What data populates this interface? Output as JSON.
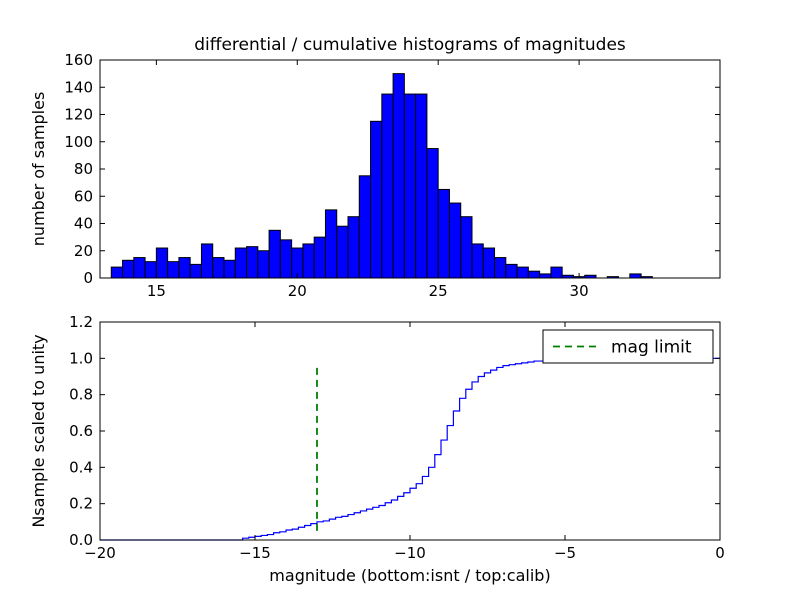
{
  "figure": {
    "title": "differential / cumulative histograms of magnitudes",
    "xlabel": "magnitude (bottom:isnt / top:calib)",
    "background": "#ffffff"
  },
  "chart_data": [
    {
      "type": "bar",
      "name": "differential-histogram",
      "ylabel": "number of samples",
      "bar_color": "#0000ff",
      "bar_edge_color": "#000000",
      "bin_start": 13.4,
      "bin_width": 0.4,
      "values": [
        8,
        13,
        15,
        12,
        22,
        12,
        15,
        10,
        25,
        15,
        13,
        22,
        23,
        20,
        35,
        28,
        22,
        25,
        30,
        50,
        38,
        45,
        75,
        115,
        135,
        150,
        135,
        135,
        95,
        65,
        55,
        45,
        25,
        22,
        15,
        10,
        8,
        5,
        3,
        8,
        2,
        1,
        2,
        0,
        1,
        0,
        3,
        1
      ],
      "xlim": [
        13,
        35
      ],
      "ylim": [
        0,
        160
      ],
      "xticks": [
        15,
        20,
        25,
        30
      ],
      "xtick_labels": [
        "15",
        "20",
        "25",
        "30"
      ],
      "yticks": [
        0,
        20,
        40,
        60,
        80,
        100,
        120,
        140,
        160
      ],
      "ytick_labels": [
        "0",
        "20",
        "40",
        "60",
        "80",
        "100",
        "120",
        "140",
        "160"
      ],
      "grid": false
    },
    {
      "type": "line",
      "name": "cumulative-histogram",
      "ylabel": "Nsample scaled to unity",
      "line_color": "#0000ff",
      "step": true,
      "points": [
        [
          -20,
          0
        ],
        [
          -15.6,
          0
        ],
        [
          -15.4,
          0.01
        ],
        [
          -15.2,
          0.015
        ],
        [
          -15.0,
          0.02
        ],
        [
          -14.8,
          0.025
        ],
        [
          -14.6,
          0.03
        ],
        [
          -14.4,
          0.04
        ],
        [
          -14.2,
          0.045
        ],
        [
          -14.0,
          0.055
        ],
        [
          -13.8,
          0.06
        ],
        [
          -13.6,
          0.07
        ],
        [
          -13.4,
          0.08
        ],
        [
          -13.2,
          0.09
        ],
        [
          -13.0,
          0.1
        ],
        [
          -12.8,
          0.105
        ],
        [
          -12.6,
          0.115
        ],
        [
          -12.4,
          0.125
        ],
        [
          -12.2,
          0.13
        ],
        [
          -12.0,
          0.14
        ],
        [
          -11.8,
          0.15
        ],
        [
          -11.6,
          0.16
        ],
        [
          -11.4,
          0.17
        ],
        [
          -11.2,
          0.18
        ],
        [
          -11.0,
          0.19
        ],
        [
          -10.8,
          0.205
        ],
        [
          -10.6,
          0.22
        ],
        [
          -10.4,
          0.24
        ],
        [
          -10.2,
          0.26
        ],
        [
          -10.0,
          0.285
        ],
        [
          -9.8,
          0.31
        ],
        [
          -9.6,
          0.35
        ],
        [
          -9.4,
          0.4
        ],
        [
          -9.2,
          0.47
        ],
        [
          -9.0,
          0.55
        ],
        [
          -8.8,
          0.63
        ],
        [
          -8.6,
          0.71
        ],
        [
          -8.4,
          0.78
        ],
        [
          -8.2,
          0.83
        ],
        [
          -8.0,
          0.87
        ],
        [
          -7.8,
          0.9
        ],
        [
          -7.6,
          0.92
        ],
        [
          -7.4,
          0.935
        ],
        [
          -7.2,
          0.95
        ],
        [
          -7.0,
          0.96
        ],
        [
          -6.8,
          0.965
        ],
        [
          -6.6,
          0.97
        ],
        [
          -6.4,
          0.975
        ],
        [
          -6.2,
          0.98
        ],
        [
          -6.0,
          0.985
        ],
        [
          -5.6,
          0.99
        ],
        [
          -5.2,
          0.993
        ],
        [
          -4.8,
          0.996
        ],
        [
          -4.4,
          0.997
        ],
        [
          -4.0,
          0.998
        ],
        [
          -3.4,
          0.999
        ],
        [
          -2.8,
          1.0
        ],
        [
          0,
          1.0
        ]
      ],
      "xlim": [
        -20,
        0
      ],
      "ylim": [
        0,
        1.2
      ],
      "xticks": [
        -20,
        -15,
        -10,
        -5,
        0
      ],
      "xtick_labels": [
        "−20",
        "−15",
        "−10",
        "−5",
        "0"
      ],
      "yticks": [
        0,
        0.2,
        0.4,
        0.6,
        0.8,
        1.0,
        1.2
      ],
      "ytick_labels": [
        "0.0",
        "0.2",
        "0.4",
        "0.6",
        "0.8",
        "1.0",
        "1.2"
      ],
      "axvline": {
        "x": -13,
        "y0": 0.05,
        "y1": 0.95,
        "color": "#008000",
        "style": "dashed"
      },
      "legend": {
        "label": "mag limit",
        "position": "upper right"
      },
      "grid": false
    }
  ]
}
